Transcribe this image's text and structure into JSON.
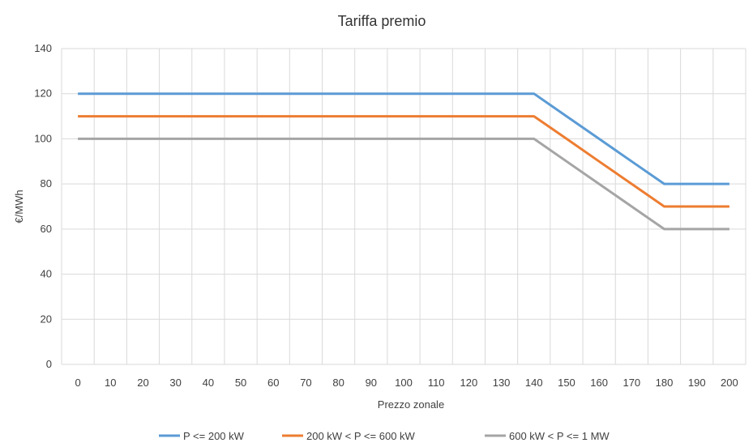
{
  "chart_data": {
    "type": "line",
    "title": "Tariffa premio",
    "xlabel": "Prezzo zonale",
    "ylabel": "€/MWh",
    "x": [
      0,
      10,
      20,
      30,
      40,
      50,
      60,
      70,
      80,
      90,
      100,
      110,
      120,
      130,
      140,
      150,
      160,
      170,
      180,
      190,
      200
    ],
    "x_tick_labels": [
      "0",
      "10",
      "20",
      "30",
      "40",
      "50",
      "60",
      "70",
      "80",
      "90",
      "100",
      "110",
      "120",
      "130",
      "140",
      "150",
      "160",
      "170",
      "180",
      "190",
      "200"
    ],
    "y_ticks": [
      0,
      20,
      40,
      60,
      80,
      100,
      120,
      140
    ],
    "y_tick_labels": [
      "0",
      "20",
      "40",
      "60",
      "80",
      "100",
      "120",
      "140"
    ],
    "xlim": [
      0,
      200
    ],
    "ylim": [
      0,
      140
    ],
    "grid": true,
    "legend_position": "bottom",
    "series": [
      {
        "name": "P <= 200 kW",
        "color": "#5b9bd5",
        "values": [
          120,
          120,
          120,
          120,
          120,
          120,
          120,
          120,
          120,
          120,
          120,
          120,
          120,
          120,
          120,
          110,
          100,
          90,
          80,
          80,
          80
        ]
      },
      {
        "name": "200 kW < P <= 600 kW",
        "color": "#ed7d31",
        "values": [
          110,
          110,
          110,
          110,
          110,
          110,
          110,
          110,
          110,
          110,
          110,
          110,
          110,
          110,
          110,
          100,
          90,
          80,
          70,
          70,
          70
        ]
      },
      {
        "name": "600 kW < P <= 1 MW",
        "color": "#a5a5a5",
        "values": [
          100,
          100,
          100,
          100,
          100,
          100,
          100,
          100,
          100,
          100,
          100,
          100,
          100,
          100,
          100,
          90,
          80,
          70,
          60,
          60,
          60
        ]
      }
    ]
  },
  "colors": {
    "gridline": "#d9d9d9",
    "text": "#404040"
  }
}
